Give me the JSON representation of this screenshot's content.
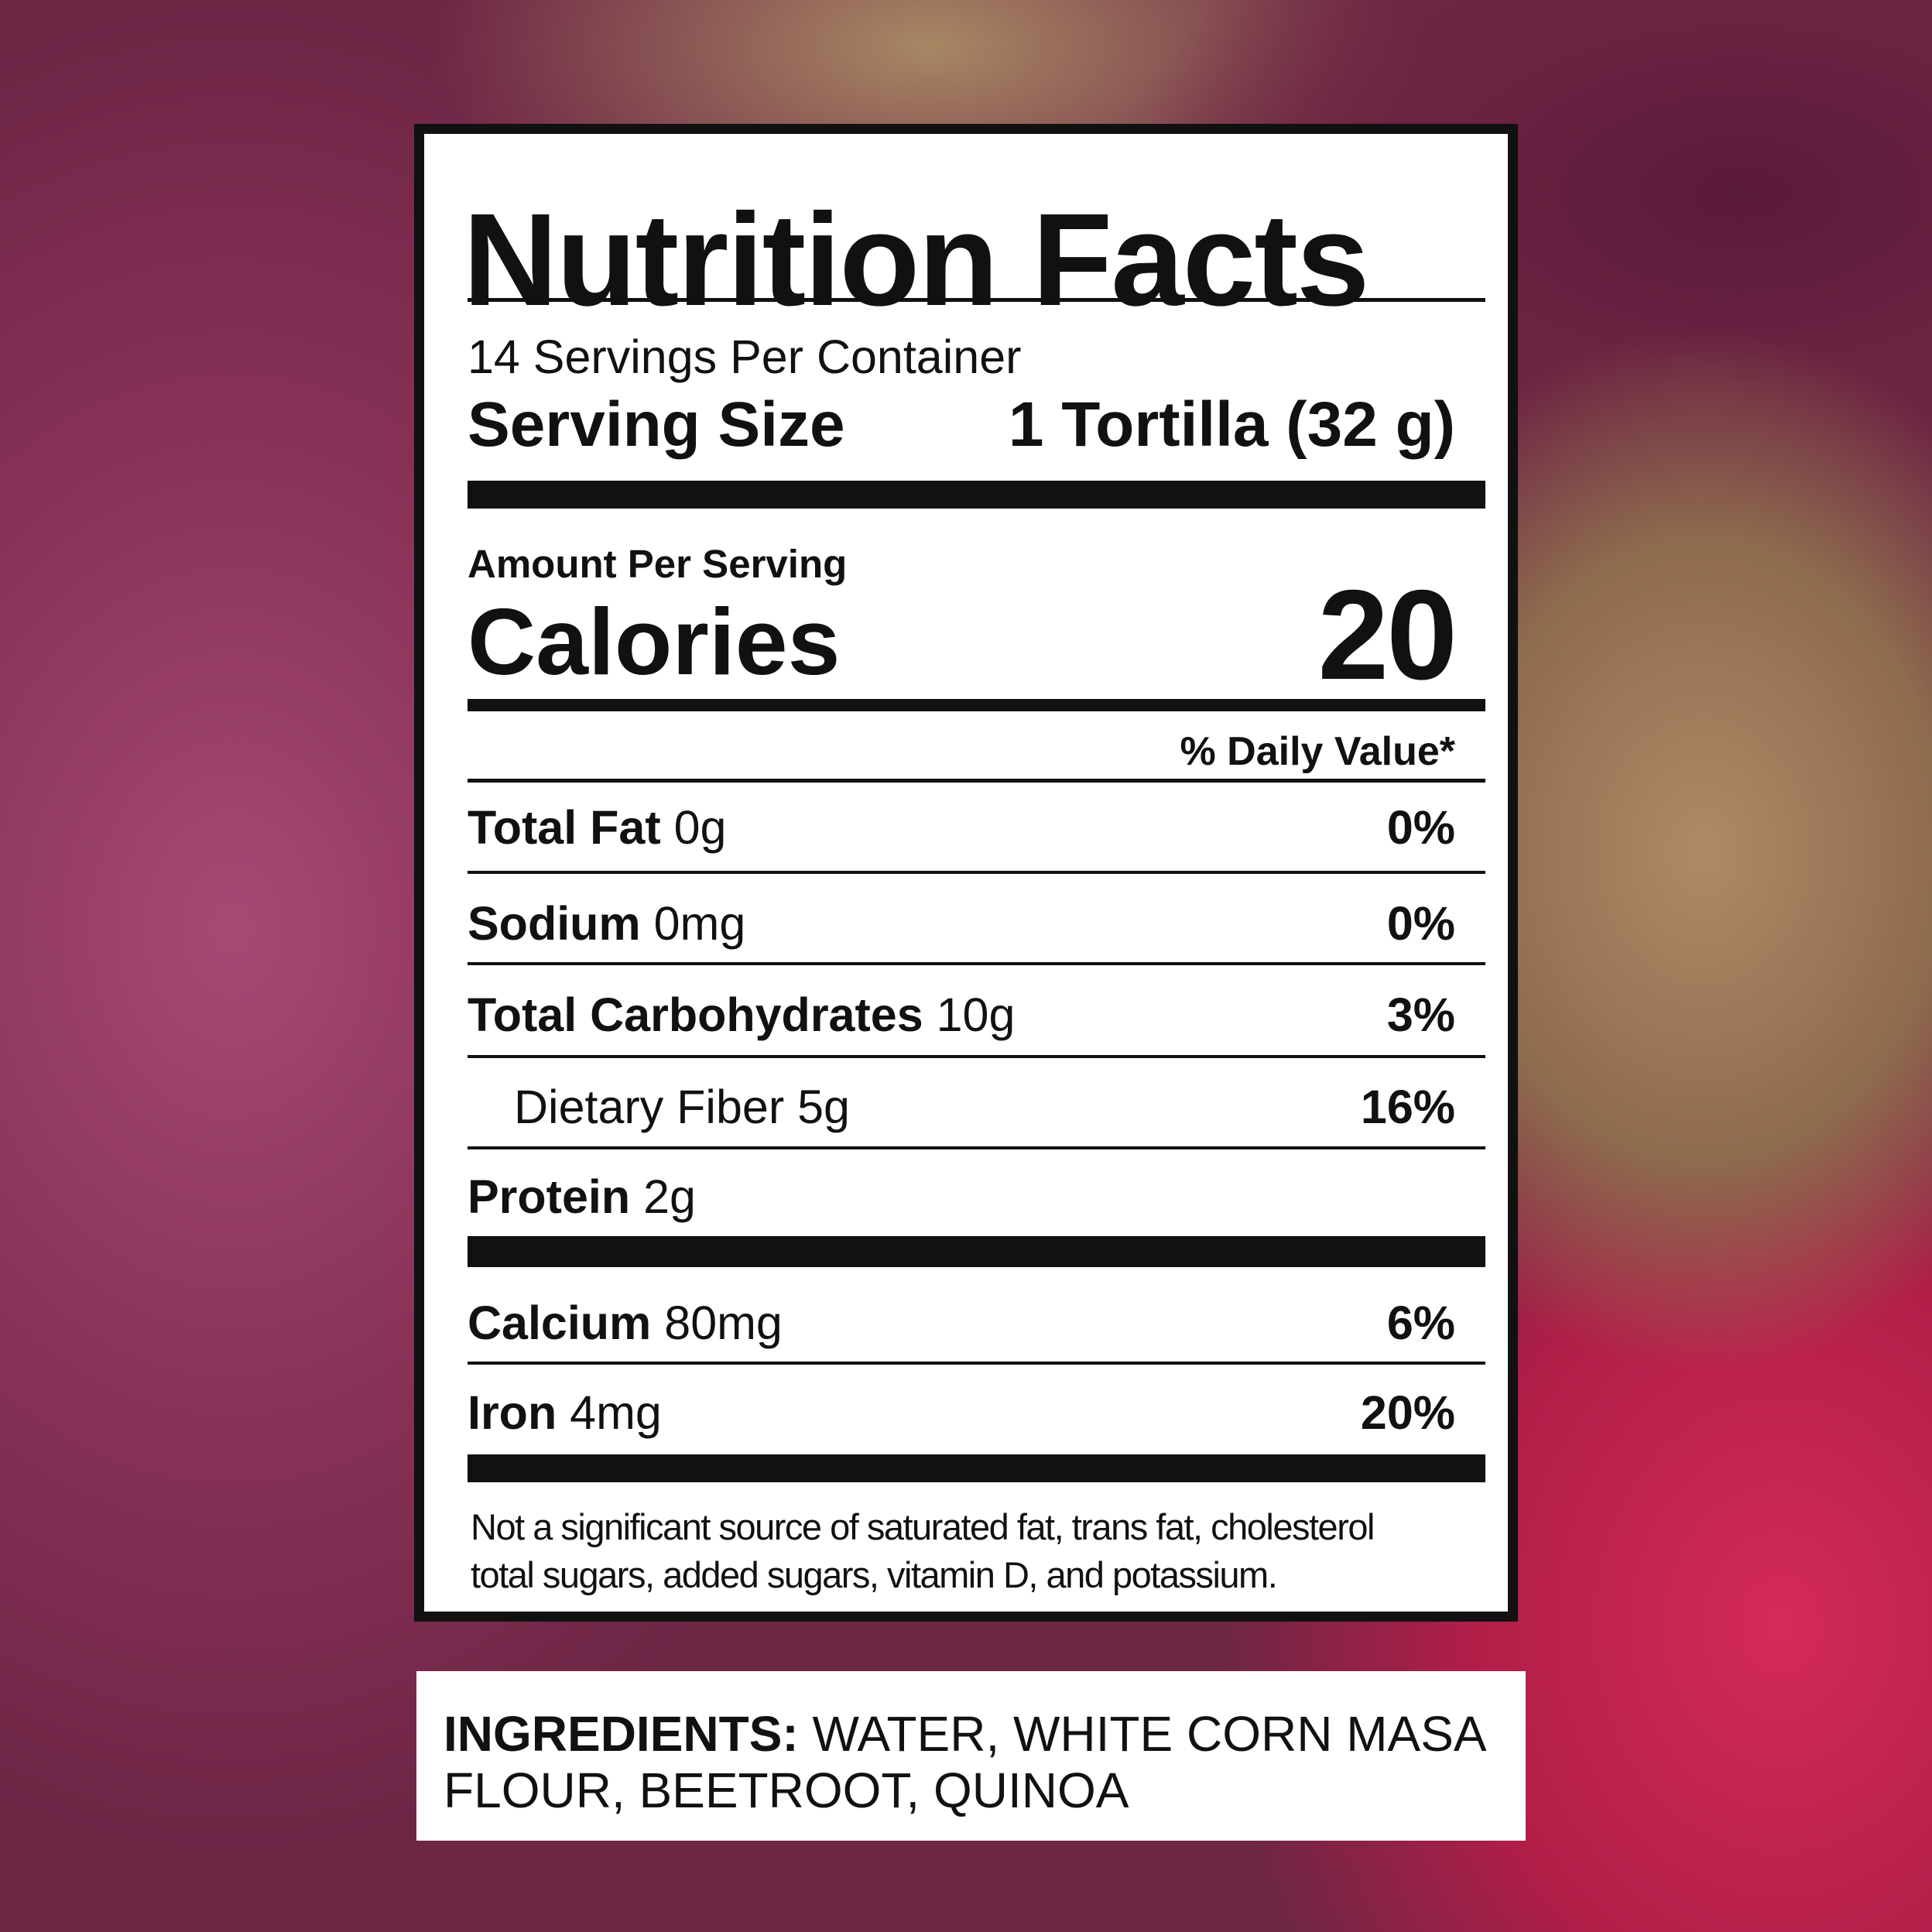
{
  "label": {
    "title": "Nutrition Facts",
    "servings_per_container": "14 Servings Per Container",
    "serving_size_label": "Serving Size",
    "serving_size_value": "1 Tortilla (32 g)",
    "amount_per_serving": "Amount Per Serving",
    "calories_label": "Calories",
    "calories_value": "20",
    "daily_value_header": "% Daily Value*",
    "nutrients": [
      {
        "name": "Total Fat",
        "amount": "0g",
        "dv": "0%"
      },
      {
        "name": "Sodium",
        "amount": "0mg",
        "dv": "0%"
      },
      {
        "name": "Total Carbohydrates",
        "amount": "10g",
        "dv": "3%"
      },
      {
        "name": "Dietary Fiber",
        "amount": "5g",
        "dv": "16%"
      },
      {
        "name": "Protein",
        "amount": "2g",
        "dv": ""
      }
    ],
    "minerals": [
      {
        "name": "Calcium",
        "amount": "80mg",
        "dv": "6%"
      },
      {
        "name": "Iron",
        "amount": "4mg",
        "dv": "20%"
      }
    ],
    "footnote_line1": "Not a significant source of saturated fat, trans fat, cholesterol",
    "footnote_line2": "total sugars, added sugars, vitamin D, and potassium."
  },
  "ingredients": {
    "label": "INGREDIENTS:",
    "line1": "WATER, WHITE CORN MASA",
    "line2": "FLOUR, BEETROOT, QUINOA"
  }
}
